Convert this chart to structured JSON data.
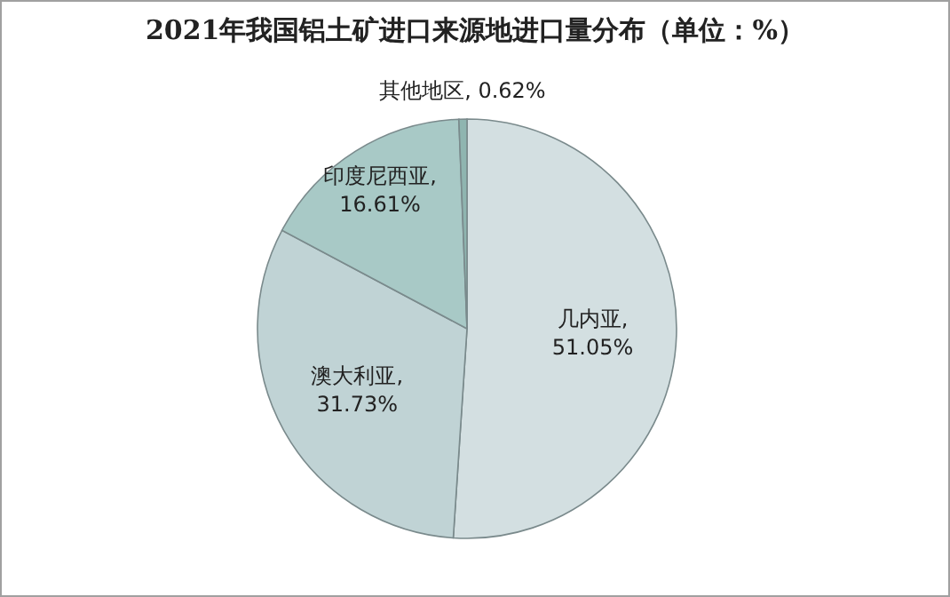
{
  "chart_data": {
    "type": "pie",
    "title": "2021年我国铝土矿进口来源地进口量分布（单位：%）",
    "categories": [
      "几内亚",
      "澳大利亚",
      "印度尼西亚",
      "其他地区"
    ],
    "values": [
      51.05,
      31.73,
      16.61,
      0.62
    ],
    "colors": [
      "#d3dfe1",
      "#c0d3d5",
      "#a8c9c6",
      "#8fb5b0"
    ],
    "value_labels": [
      ", 51.05%",
      ", 31.73%",
      ", 16.61%",
      ", 0.62%"
    ]
  }
}
